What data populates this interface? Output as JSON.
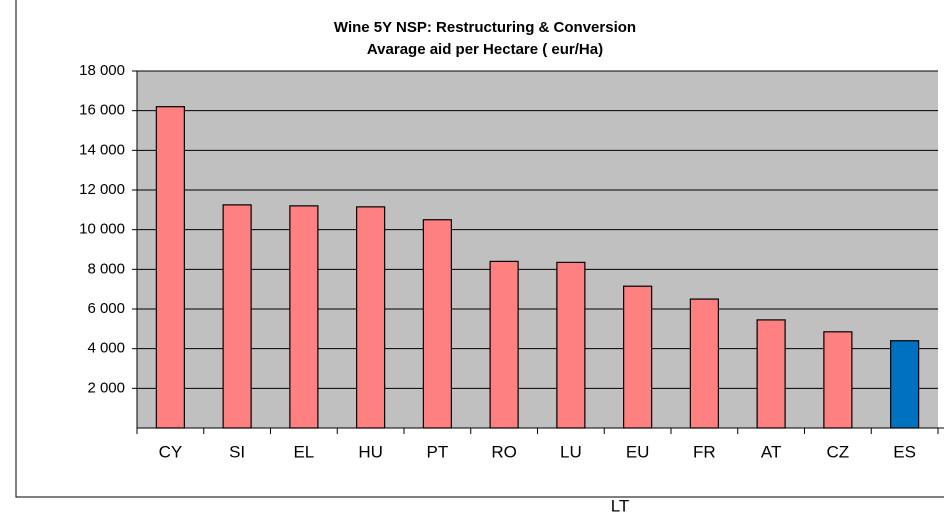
{
  "chart_data": {
    "type": "bar",
    "title": "Wine 5Y NSP: Restructuring & Conversion",
    "subtitle": "Avarage aid per Hectare ( eur/Ha)",
    "categories": [
      "CY",
      "SI",
      "EL",
      "HU",
      "PT",
      "RO",
      "LU",
      "EU",
      "FR",
      "AT",
      "CZ",
      "ES"
    ],
    "values": [
      16200,
      11250,
      11200,
      11150,
      10500,
      8400,
      8350,
      7150,
      6500,
      5450,
      4850,
      4400
    ],
    "colors": [
      "#ff8080",
      "#ff8080",
      "#ff8080",
      "#ff8080",
      "#ff8080",
      "#ff8080",
      "#ff8080",
      "#ff8080",
      "#ff8080",
      "#ff8080",
      "#ff8080",
      "#0070c0"
    ],
    "ylim": [
      0,
      18000
    ],
    "yticks": [
      {
        "value": 2000,
        "label": "2 000"
      },
      {
        "value": 4000,
        "label": "4 000"
      },
      {
        "value": 6000,
        "label": "6 000"
      },
      {
        "value": 8000,
        "label": "8 000"
      },
      {
        "value": 10000,
        "label": "10 000"
      },
      {
        "value": 12000,
        "label": "12 000"
      },
      {
        "value": 14000,
        "label": "14 000"
      },
      {
        "value": 16000,
        "label": "16 000"
      },
      {
        "value": 18000,
        "label": "18 000"
      }
    ],
    "grid": true,
    "annotation": "LT"
  }
}
